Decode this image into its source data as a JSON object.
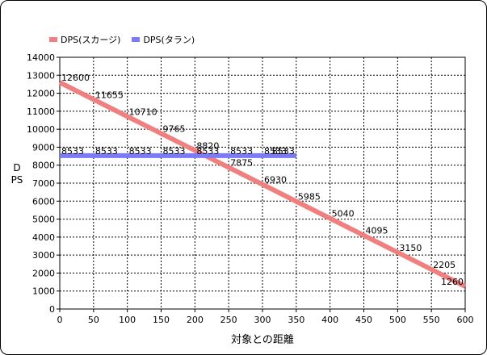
{
  "chart_data": {
    "type": "line",
    "xlabel": "対象との距離",
    "ylabel": "DPS",
    "xlim": [
      0,
      600
    ],
    "ylim": [
      0,
      14000
    ],
    "x_ticks": [
      "0",
      "50",
      "100",
      "150",
      "200",
      "250",
      "300",
      "350",
      "400",
      "450",
      "500",
      "550",
      "600"
    ],
    "y_ticks": [
      "0",
      "1000",
      "2000",
      "3000",
      "4000",
      "5000",
      "6000",
      "7000",
      "8000",
      "9000",
      "10000",
      "11000",
      "12000",
      "13000",
      "14000"
    ],
    "grid": true,
    "legend_position": "top-left",
    "series": [
      {
        "name": "DPS(スカージ)",
        "color": "#f08080",
        "line_endpoints": [
          [
            0,
            12600
          ],
          [
            600,
            1260
          ]
        ],
        "points": [
          [
            0,
            12600
          ],
          [
            50,
            11655
          ],
          [
            100,
            10710
          ],
          [
            150,
            9765
          ],
          [
            200,
            8820
          ],
          [
            250,
            7875
          ],
          [
            300,
            6930
          ],
          [
            350,
            5985
          ],
          [
            400,
            5040
          ],
          [
            450,
            4095
          ],
          [
            500,
            3150
          ],
          [
            550,
            2205
          ],
          [
            600,
            1260
          ]
        ],
        "labels": [
          "12600",
          "11655",
          "10710",
          "9765",
          "8820",
          "7875",
          "6930",
          "5985",
          "5040",
          "4095",
          "3150",
          "2205",
          "1260"
        ]
      },
      {
        "name": "DPS(タラン)",
        "color": "#7b7bf5",
        "line_endpoints": [
          [
            0,
            8533
          ],
          [
            350,
            8533
          ]
        ],
        "points": [
          [
            0,
            8533
          ],
          [
            50,
            8533
          ],
          [
            100,
            8533
          ],
          [
            150,
            8533
          ],
          [
            200,
            8533
          ],
          [
            250,
            8533
          ],
          [
            300,
            8533
          ],
          [
            350,
            8533
          ]
        ],
        "labels": [
          "8533",
          "8533",
          "8533",
          "8533",
          "8533",
          "8533",
          "8533",
          "8533"
        ]
      }
    ]
  }
}
